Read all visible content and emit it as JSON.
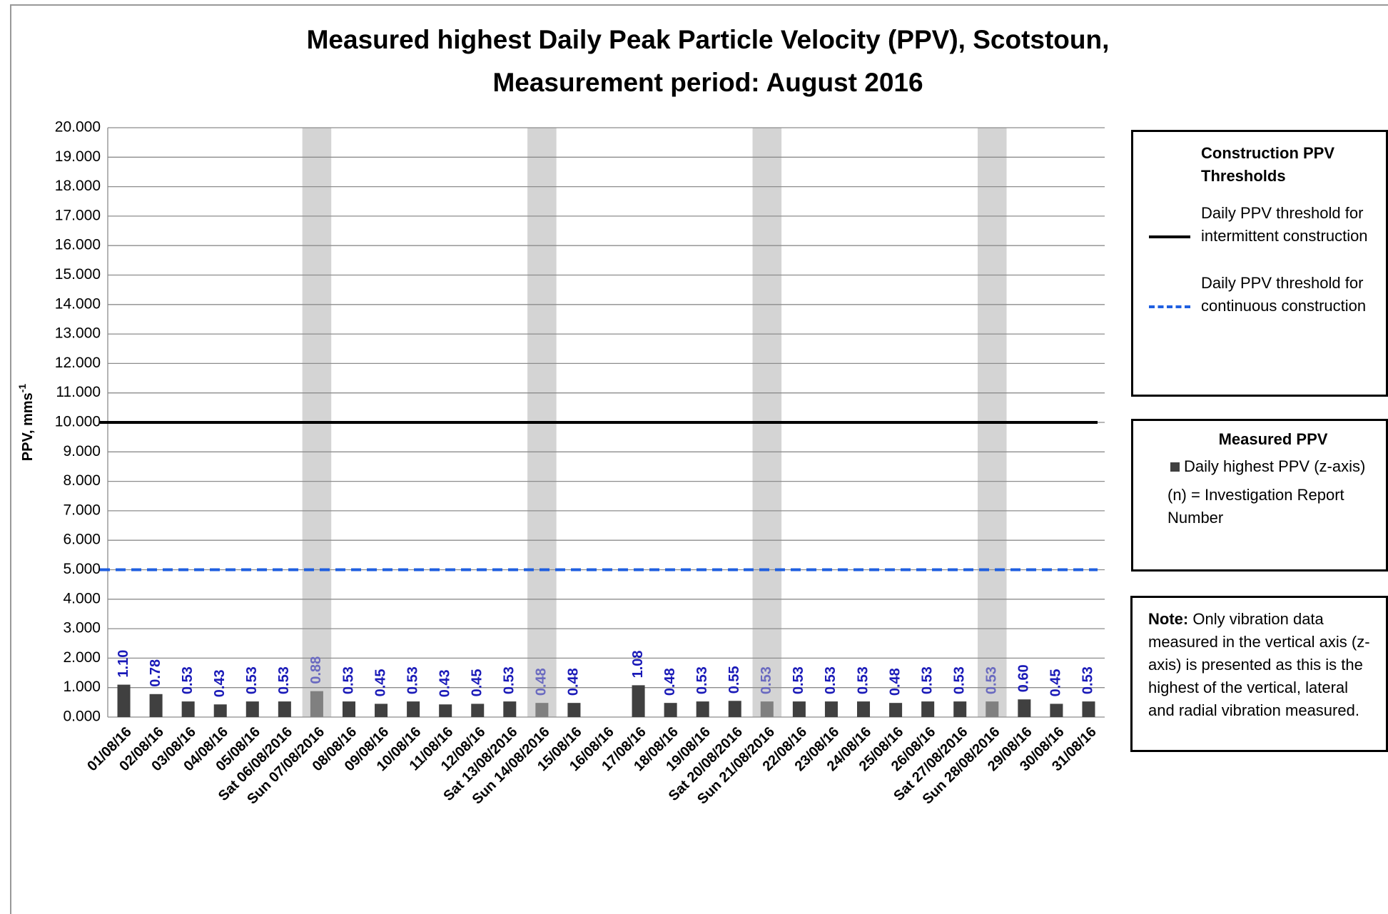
{
  "chart_data": {
    "type": "bar",
    "title": "Measured highest Daily Peak Particle Velocity (PPV), Scotstoun,",
    "subtitle": "Measurement period: August 2016",
    "y_label": "PPV, mms",
    "y_label_sup": "-1",
    "categories": [
      "01/08/16",
      "02/08/16",
      "03/08/16",
      "04/08/16",
      "05/08/16",
      "Sat 06/08/2016",
      "Sun 07/08/2016",
      "08/08/16",
      "09/08/16",
      "10/08/16",
      "11/08/16",
      "12/08/16",
      "Sat 13/08/2016",
      "Sun 14/08/2016",
      "15/08/16",
      "16/08/16",
      "17/08/16",
      "18/08/16",
      "19/08/16",
      "Sat 20/08/2016",
      "Sun 21/08/2016",
      "22/08/16",
      "23/08/16",
      "24/08/16",
      "25/08/16",
      "26/08/16",
      "Sat 27/08/2016",
      "Sun 28/08/2016",
      "29/08/16",
      "30/08/16",
      "31/08/16"
    ],
    "values": [
      1.1,
      0.78,
      0.53,
      0.43,
      0.53,
      0.53,
      0.88,
      0.53,
      0.45,
      0.53,
      0.43,
      0.45,
      0.53,
      0.48,
      0.48,
      null,
      1.08,
      0.48,
      0.53,
      0.55,
      0.53,
      0.53,
      0.53,
      0.53,
      0.48,
      0.53,
      0.53,
      0.53,
      0.6,
      0.45,
      0.53
    ],
    "value_labels": [
      "1.10",
      "0.78",
      "0.53",
      "0.43",
      "0.53",
      "0.53",
      "0.88",
      "0.53",
      "0.45",
      "0.53",
      "0.43",
      "0.45",
      "0.53",
      "0.48",
      "0.48",
      null,
      "1.08",
      "0.48",
      "0.53",
      "0.55",
      "0.53",
      "0.53",
      "0.53",
      "0.53",
      "0.48",
      "0.53",
      "0.53",
      "0.53",
      "0.60",
      "0.45",
      "0.53"
    ],
    "color": "#404040",
    "shaded_color": "#808080",
    "label_color": "#1a1ab8",
    "shaded_label_color": "#6a6ac0",
    "shade_fill": "#d4d4d4",
    "shaded_categories": [
      6,
      13,
      20,
      27
    ],
    "ylim": [
      0,
      20
    ],
    "yticks": [
      {
        "value": 0,
        "label": "0.000"
      },
      {
        "value": 1,
        "label": "1.000"
      },
      {
        "value": 2,
        "label": "2.000"
      },
      {
        "value": 3,
        "label": "3.000"
      },
      {
        "value": 4,
        "label": "4.000"
      },
      {
        "value": 5,
        "label": "5.000"
      },
      {
        "value": 6,
        "label": "6.000"
      },
      {
        "value": 7,
        "label": "7.000"
      },
      {
        "value": 8,
        "label": "8.000"
      },
      {
        "value": 9,
        "label": "9.000"
      },
      {
        "value": 10,
        "label": "10.000"
      },
      {
        "value": 11,
        "label": "11.000"
      },
      {
        "value": 12,
        "label": "12.000"
      },
      {
        "value": 13,
        "label": "13.000"
      },
      {
        "value": 14,
        "label": "14.000"
      },
      {
        "value": 15,
        "label": "15.000"
      },
      {
        "value": 16,
        "label": "16.000"
      },
      {
        "value": 17,
        "label": "17.000"
      },
      {
        "value": 18,
        "label": "18.000"
      },
      {
        "value": 19,
        "label": "19.000"
      },
      {
        "value": 20,
        "label": "20.000"
      }
    ],
    "grid": true,
    "thresholds_title": "Construction PPV Thresholds",
    "thresholds": [
      {
        "name": "Daily PPV threshold for intermittent construction",
        "value": 10,
        "color": "#000000",
        "dashed": false
      },
      {
        "name": "Daily PPV threshold for continuous construction",
        "value": 5,
        "color": "#1f5fe0",
        "dashed": true
      }
    ],
    "measured_title": "Measured PPV",
    "measured_entry": "Daily highest PPV (z-axis)",
    "measured_note": "(n) = Investigation Report Number",
    "note_label": "Note:",
    "note_text": "Only vibration data measured in the vertical axis (z-axis) is presented as this is the highest of the vertical, lateral and radial vibration measured."
  }
}
